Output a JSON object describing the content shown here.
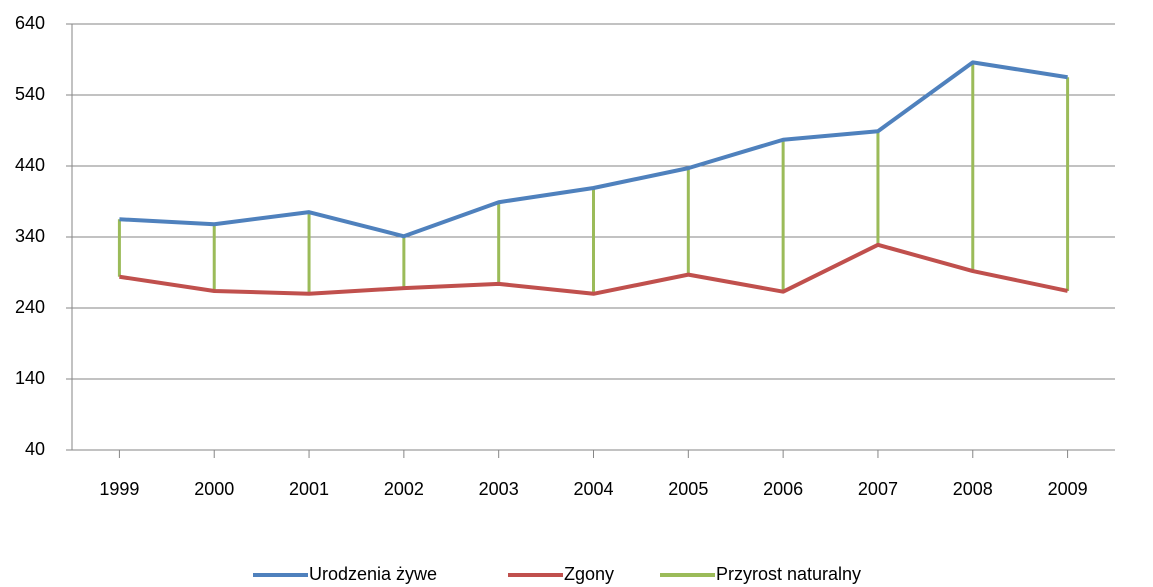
{
  "chart_data": {
    "type": "line",
    "categories": [
      "1999",
      "2000",
      "2001",
      "2002",
      "2003",
      "2004",
      "2005",
      "2006",
      "2007",
      "2008",
      "2009"
    ],
    "series": [
      {
        "name": "Urodzenia żywe",
        "color": "#4f81bd",
        "values": [
          365,
          358,
          375,
          341,
          389,
          409,
          437,
          477,
          489,
          586,
          565
        ]
      },
      {
        "name": "Zgony",
        "color": "#c0504d",
        "values": [
          284,
          264,
          260,
          268,
          274,
          260,
          287,
          263,
          329,
          292,
          264
        ]
      },
      {
        "name": "Przyrost naturalny",
        "color": "#9bbb59",
        "values": [
          81,
          94,
          115,
          73,
          115,
          149,
          150,
          214,
          160,
          294,
          301
        ]
      }
    ],
    "ylim": [
      40,
      640
    ],
    "yticks": [
      40,
      140,
      240,
      340,
      440,
      540,
      640
    ],
    "grid": true,
    "legend": "bottom"
  }
}
